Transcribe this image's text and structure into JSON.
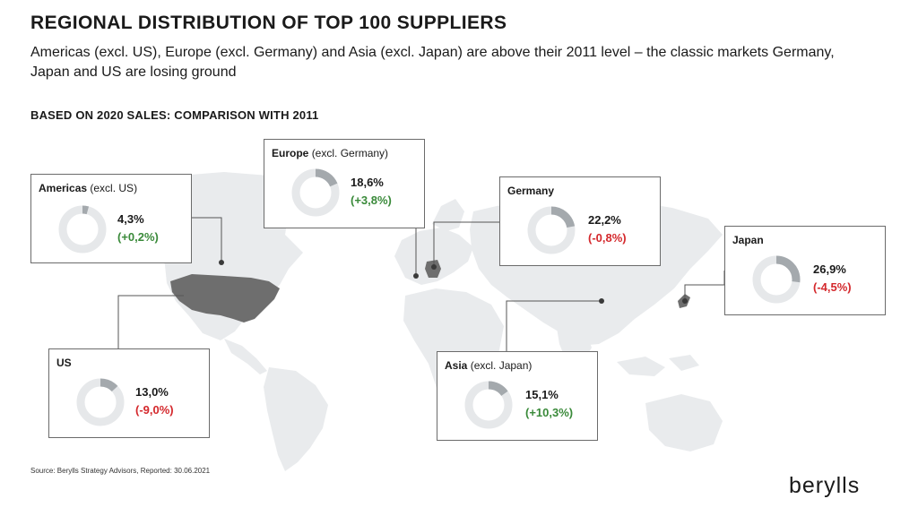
{
  "header": {
    "title": "REGIONAL DISTRIBUTION OF TOP 100 SUPPLIERS",
    "subtitle": "Americas (excl. US), Europe (excl. Germany) and Asia (excl. Japan) are above their 2011 level – the classic markets Germany, Japan and US are losing ground",
    "section_label": "BASED ON 2020 SALES: COMPARISON WITH 2011"
  },
  "footer": {
    "source": "Source: Berylls Strategy Advisors, Reported: 30.06.2021",
    "logo": "berylls"
  },
  "colors": {
    "donut_fill": "#a4a9ad",
    "donut_track": "#e6e8ea",
    "map_land": "#e9ebed",
    "map_highlight": "#6e6e6e",
    "positive": "#3a8a3a",
    "negative": "#d4282c"
  },
  "regions": [
    {
      "id": "americas",
      "name": "Americas",
      "qualifier": "(excl. US)",
      "share_label": "4,3%",
      "change_label": "(+0,2%)",
      "share": 4.3,
      "change": 0.2
    },
    {
      "id": "europe",
      "name": "Europe",
      "qualifier": "(excl. Germany)",
      "share_label": "18,6%",
      "change_label": "(+3,8%)",
      "share": 18.6,
      "change": 3.8
    },
    {
      "id": "germany",
      "name": "Germany",
      "qualifier": "",
      "share_label": "22,2%",
      "change_label": "(-0,8%)",
      "share": 22.2,
      "change": -0.8
    },
    {
      "id": "japan",
      "name": "Japan",
      "qualifier": "",
      "share_label": "26,9%",
      "change_label": "(-4,5%)",
      "share": 26.9,
      "change": -4.5
    },
    {
      "id": "us",
      "name": "US",
      "qualifier": "",
      "share_label": "13,0%",
      "change_label": "(-9,0%)",
      "share": 13.0,
      "change": -9.0
    },
    {
      "id": "asia",
      "name": "Asia",
      "qualifier": "(excl. Japan)",
      "share_label": "15,1%",
      "change_label": "(+10,3%)",
      "share": 15.1,
      "change": 10.3
    }
  ]
}
